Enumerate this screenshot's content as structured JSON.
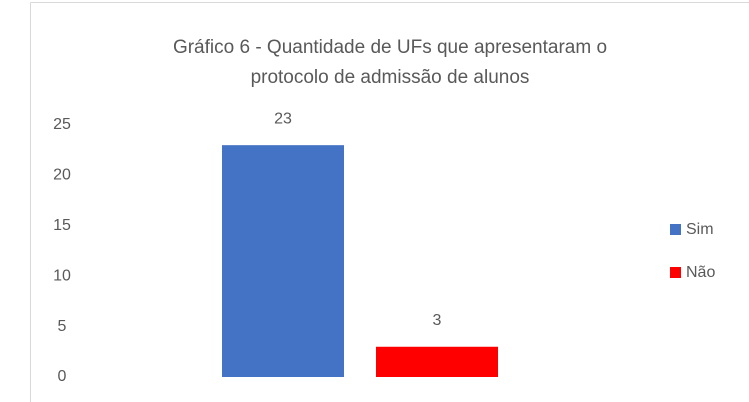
{
  "chart_data": {
    "type": "bar",
    "title": [
      "Gráfico 6 - Quantidade de UFs que apresentaram o",
      "protocolo de admissão de alunos"
    ],
    "categories": [
      null
    ],
    "series": [
      {
        "name": "Sim",
        "color": "#4472c4",
        "values": [
          23
        ]
      },
      {
        "name": "Não",
        "color": "#ff0000",
        "values": [
          3
        ]
      }
    ],
    "ylim": [
      0,
      25
    ],
    "yticks": [
      0,
      5,
      10,
      15,
      20,
      25
    ],
    "grid": false,
    "legend": "right"
  }
}
